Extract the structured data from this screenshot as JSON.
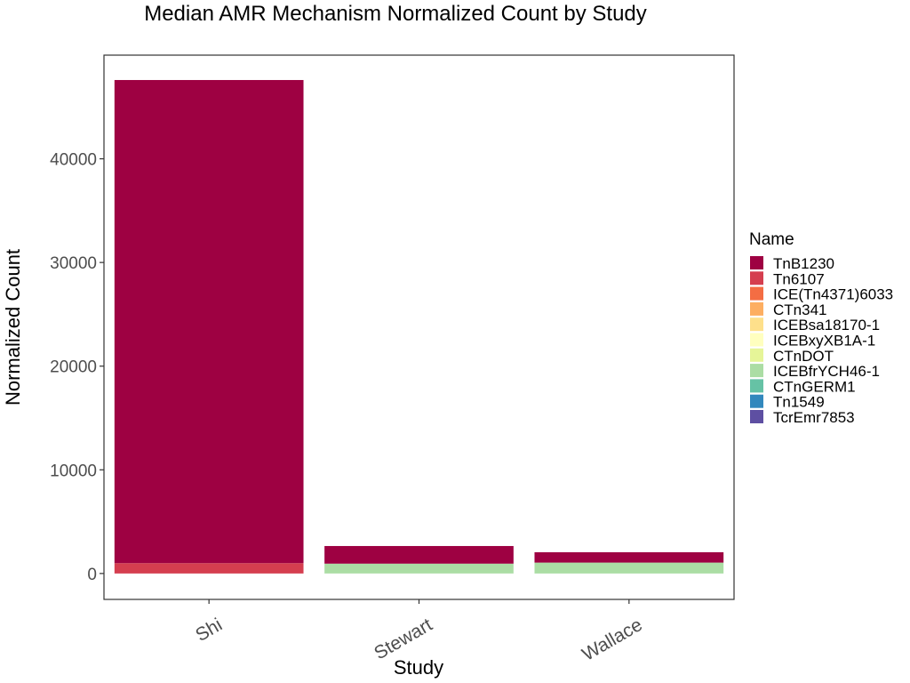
{
  "chart_data": {
    "type": "bar",
    "stacked": true,
    "title": "Median AMR Mechanism Normalized Count by Study",
    "xlabel": "Study",
    "ylabel": "Normalized Count",
    "categories": [
      "Shi",
      "Stewart",
      "Wallace"
    ],
    "ylim": [
      -2500,
      50000
    ],
    "yticks": [
      0,
      10000,
      20000,
      30000,
      40000
    ],
    "ytick_labels": [
      "0",
      "10000",
      "20000",
      "30000",
      "40000"
    ],
    "grid": false,
    "legend_position": "right",
    "legend_title": "Name",
    "series": [
      {
        "name": "TnB1230",
        "color": "#9E0142",
        "values": [
          46600,
          1700,
          1000
        ]
      },
      {
        "name": "Tn6107",
        "color": "#D53E4F",
        "values": [
          1000,
          0,
          0
        ]
      },
      {
        "name": "ICE(Tn4371)6033",
        "color": "#F46D43",
        "values": [
          0,
          0,
          0
        ]
      },
      {
        "name": "CTn341",
        "color": "#FDAE61",
        "values": [
          0,
          0,
          0
        ]
      },
      {
        "name": "ICEBsa18170-1",
        "color": "#FEE08B",
        "values": [
          0,
          0,
          0
        ]
      },
      {
        "name": "ICEBxyXB1A-1",
        "color": "#FFFFBF",
        "values": [
          0,
          0,
          0
        ]
      },
      {
        "name": "CTnDOT",
        "color": "#E6F598",
        "values": [
          0,
          0,
          0
        ]
      },
      {
        "name": "ICEBfrYCH46-1",
        "color": "#ABDDA4",
        "values": [
          0,
          950,
          1050
        ]
      },
      {
        "name": "CTnGERM1",
        "color": "#66C2A5",
        "values": [
          0,
          0,
          0
        ]
      },
      {
        "name": "Tn1549",
        "color": "#3288BD",
        "values": [
          0,
          0,
          0
        ]
      },
      {
        "name": "TcrEmr7853",
        "color": "#5E4FA2",
        "values": [
          0,
          0,
          0
        ]
      }
    ]
  }
}
